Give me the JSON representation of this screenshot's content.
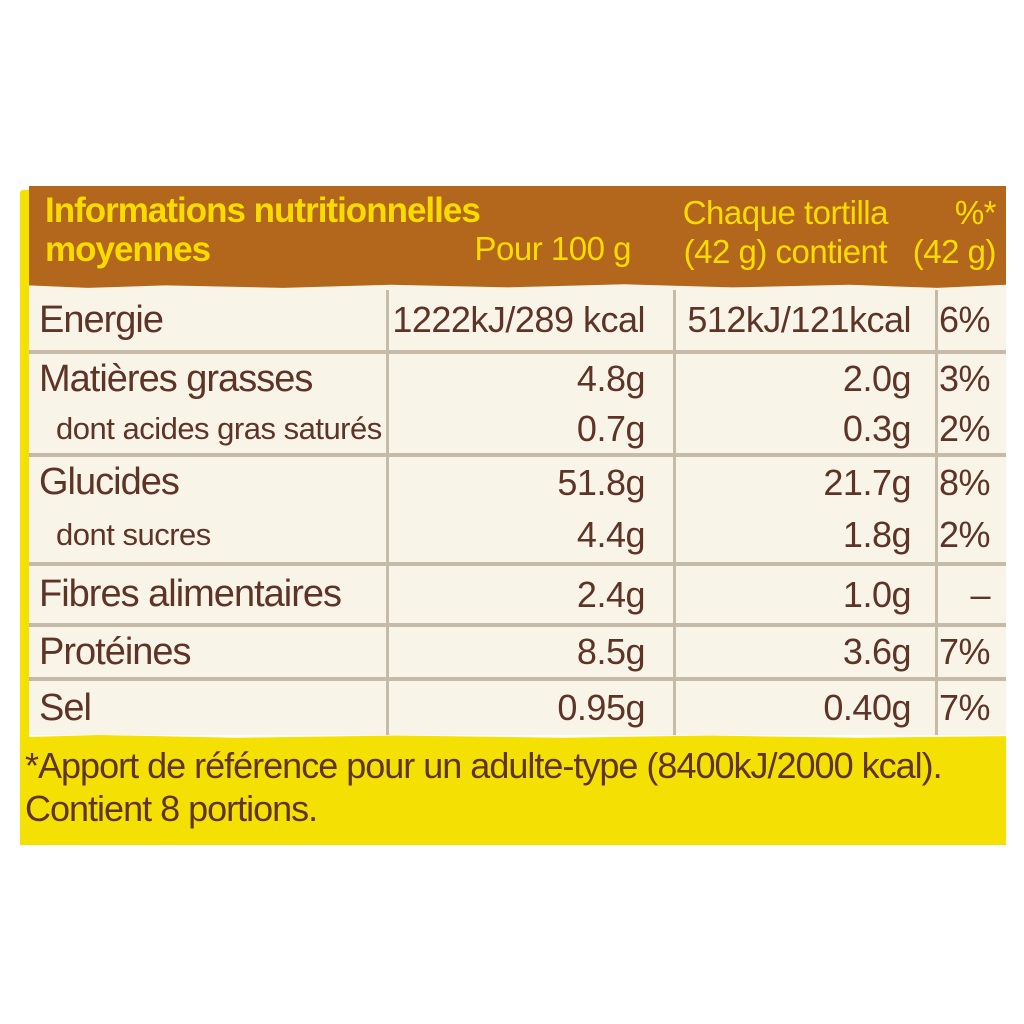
{
  "header": {
    "title_line1": "Informations nutritionnelles",
    "title_line2": "moyennes",
    "col_per100": "Pour 100 g",
    "col_portion_line1": "Chaque tortilla",
    "col_portion_line2": "(42 g) contient",
    "col_pct_line1": "%*",
    "col_pct_line2": "(42 g)"
  },
  "rows": [
    {
      "label": "Energie",
      "per100": "1222kJ/289 kcal",
      "portion": "512kJ/121kcal",
      "pct": "6%"
    },
    {
      "label": "Matières grasses",
      "per100": "4.8g",
      "portion": "2.0g",
      "pct": "3%"
    },
    {
      "label": "dont acides gras saturés",
      "per100": "0.7g",
      "portion": "0.3g",
      "pct": "2%"
    },
    {
      "label": "Glucides",
      "per100": "51.8g",
      "portion": "21.7g",
      "pct": "8%"
    },
    {
      "label": "dont sucres",
      "per100": "4.4g",
      "portion": "1.8g",
      "pct": "2%"
    },
    {
      "label": "Fibres alimentaires",
      "per100": "2.4g",
      "portion": "1.0g",
      "pct": "–"
    },
    {
      "label": "Protéines",
      "per100": "8.5g",
      "portion": "3.6g",
      "pct": "7%"
    },
    {
      "label": "Sel",
      "per100": "0.95g",
      "portion": "0.40g",
      "pct": "7%"
    }
  ],
  "footer": {
    "line1": "*Apport de référence pour un adulte-type (8400kJ/2000 kcal).",
    "line2": "Contient 8 portions."
  },
  "colors": {
    "header_background": "#b3671d",
    "header_text_yellow": "#f8dc00",
    "accent_yellow": "#f5e003",
    "body_cream": "#f9f4e8",
    "text_brown": "#5e3426",
    "divider": "#c6baa9"
  }
}
